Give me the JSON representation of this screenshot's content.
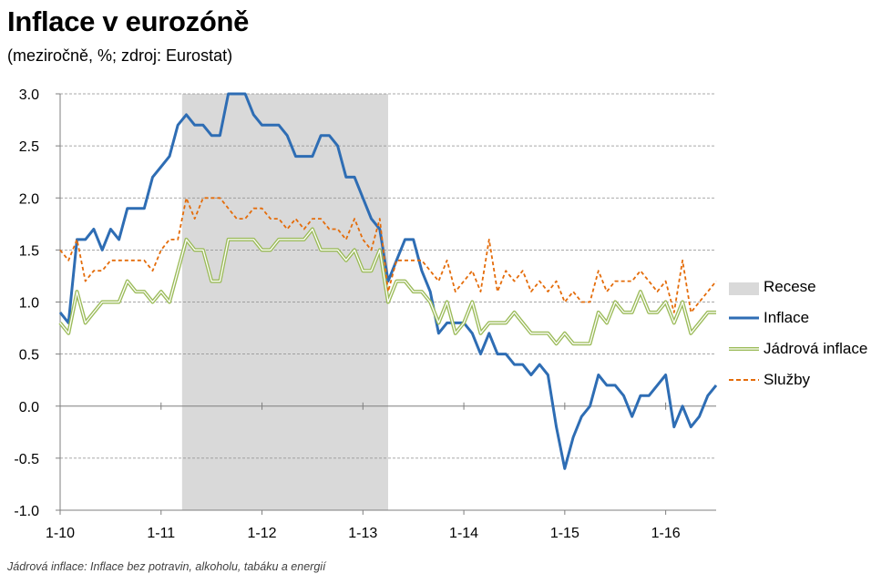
{
  "title": "Inflace v eurozóně",
  "subtitle": "(meziročně, %; zdroj: Eurostat)",
  "note": "Jádrová inflace: Inflace bez potravin, alkoholu, tabáku a energií",
  "chart_data": {
    "type": "line",
    "ylim": [
      -1.0,
      3.0
    ],
    "y_ticks": [
      "3.0",
      "2.5",
      "2.0",
      "1.5",
      "1.0",
      "0.5",
      "0.0",
      "-0.5",
      "-1.0"
    ],
    "x_tick_labels": [
      "1-10",
      "1-11",
      "1-12",
      "1-13",
      "1-14",
      "1-15",
      "1-16"
    ],
    "grid": "horizontal dashed",
    "legend_position": "right",
    "recession": {
      "name": "Recese",
      "start_index": 15,
      "end_index": 39,
      "color": "#d9d9d9"
    },
    "series": [
      {
        "name": "Inflace",
        "color": "#2e6db4",
        "style": "solid",
        "values": [
          0.9,
          0.8,
          1.6,
          1.6,
          1.7,
          1.5,
          1.7,
          1.6,
          1.9,
          1.9,
          1.9,
          2.2,
          2.3,
          2.4,
          2.7,
          2.8,
          2.7,
          2.7,
          2.6,
          2.6,
          3.0,
          3.0,
          3.0,
          2.8,
          2.7,
          2.7,
          2.7,
          2.6,
          2.4,
          2.4,
          2.4,
          2.6,
          2.6,
          2.5,
          2.2,
          2.2,
          2.0,
          1.8,
          1.7,
          1.2,
          1.4,
          1.6,
          1.6,
          1.3,
          1.1,
          0.7,
          0.8,
          0.8,
          0.8,
          0.7,
          0.5,
          0.7,
          0.5,
          0.5,
          0.4,
          0.4,
          0.3,
          0.4,
          0.3,
          -0.2,
          -0.6,
          -0.3,
          -0.1,
          0.0,
          0.3,
          0.2,
          0.2,
          0.1,
          -0.1,
          0.1,
          0.1,
          0.2,
          0.3,
          -0.2,
          0.0,
          -0.2,
          -0.1,
          0.1,
          0.2
        ]
      },
      {
        "name": "Jádrová inflace",
        "color": "#9bbb59",
        "style": "double",
        "values": [
          0.8,
          0.7,
          1.1,
          0.8,
          0.9,
          1.0,
          1.0,
          1.0,
          1.2,
          1.1,
          1.1,
          1.0,
          1.1,
          1.0,
          1.3,
          1.6,
          1.5,
          1.5,
          1.2,
          1.2,
          1.6,
          1.6,
          1.6,
          1.6,
          1.5,
          1.5,
          1.6,
          1.6,
          1.6,
          1.6,
          1.7,
          1.5,
          1.5,
          1.5,
          1.4,
          1.5,
          1.3,
          1.3,
          1.5,
          1.0,
          1.2,
          1.2,
          1.1,
          1.1,
          1.0,
          0.8,
          1.0,
          0.7,
          0.8,
          1.0,
          0.7,
          0.8,
          0.8,
          0.8,
          0.9,
          0.8,
          0.7,
          0.7,
          0.7,
          0.6,
          0.7,
          0.6,
          0.6,
          0.6,
          0.9,
          0.8,
          1.0,
          0.9,
          0.9,
          1.1,
          0.9,
          0.9,
          1.0,
          0.8,
          1.0,
          0.7,
          0.8,
          0.9,
          0.9
        ]
      },
      {
        "name": "Služby",
        "color": "#e46c0a",
        "style": "dashed",
        "values": [
          1.5,
          1.4,
          1.6,
          1.2,
          1.3,
          1.3,
          1.4,
          1.4,
          1.4,
          1.4,
          1.4,
          1.3,
          1.5,
          1.6,
          1.6,
          2.0,
          1.8,
          2.0,
          2.0,
          2.0,
          1.9,
          1.8,
          1.8,
          1.9,
          1.9,
          1.8,
          1.8,
          1.7,
          1.8,
          1.7,
          1.8,
          1.8,
          1.7,
          1.7,
          1.6,
          1.8,
          1.6,
          1.5,
          1.8,
          1.1,
          1.4,
          1.4,
          1.4,
          1.4,
          1.3,
          1.2,
          1.4,
          1.1,
          1.2,
          1.3,
          1.1,
          1.6,
          1.1,
          1.3,
          1.2,
          1.3,
          1.1,
          1.2,
          1.1,
          1.2,
          1.0,
          1.1,
          1.0,
          1.0,
          1.3,
          1.1,
          1.2,
          1.2,
          1.2,
          1.3,
          1.2,
          1.1,
          1.2,
          0.9,
          1.4,
          0.9,
          1.0,
          1.1,
          1.2
        ]
      }
    ]
  }
}
